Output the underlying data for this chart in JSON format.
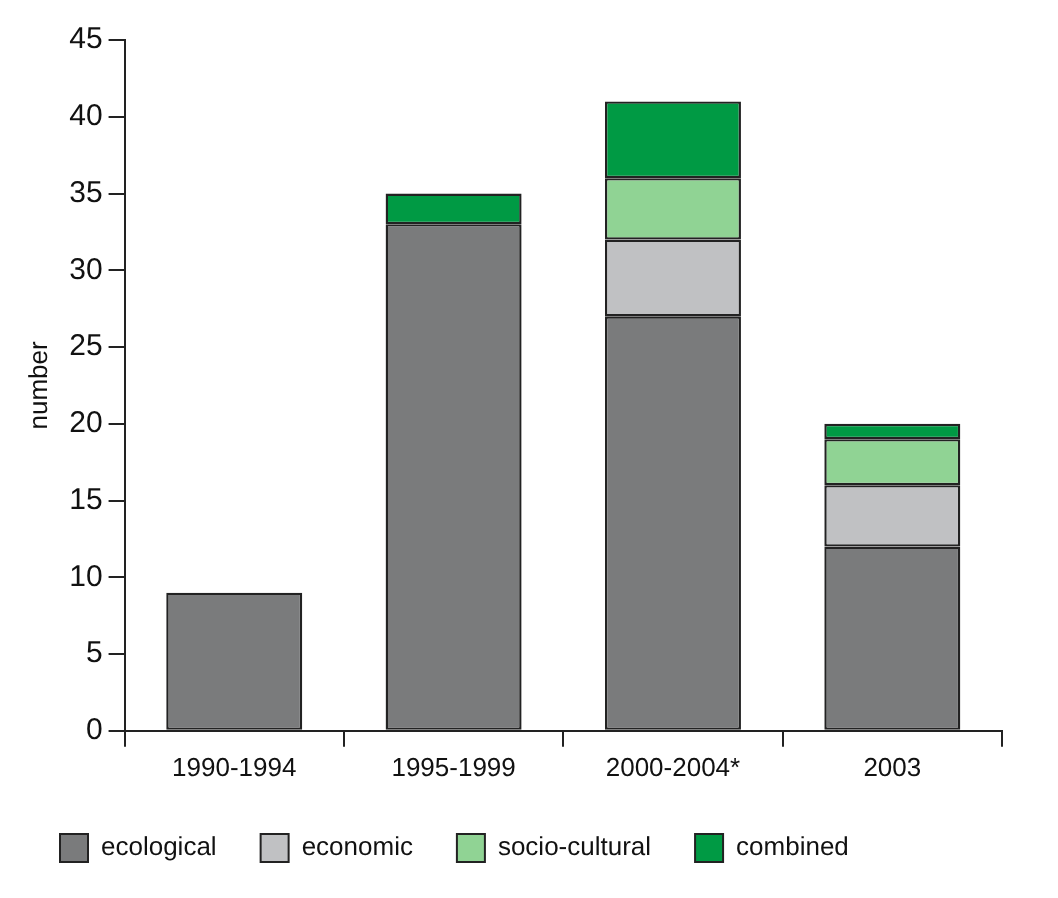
{
  "chart_data": {
    "type": "bar",
    "ylabel": "number",
    "categories": [
      "1990-1994",
      "1995-1999",
      "2000-2004*",
      "2003"
    ],
    "series": [
      {
        "name": "ecological",
        "color": "#7a7b7c",
        "values": [
          9,
          33,
          27,
          12
        ]
      },
      {
        "name": "economic",
        "color": "#c0c1c3",
        "values": [
          0,
          0,
          5,
          4
        ]
      },
      {
        "name": "socio-cultural",
        "color": "#90d394",
        "values": [
          0,
          0,
          4,
          3
        ]
      },
      {
        "name": "combined",
        "color": "#009a44",
        "values": [
          0,
          2,
          5,
          1
        ]
      }
    ],
    "stacked": true,
    "ylim": [
      0,
      45
    ],
    "yticks": [
      0,
      5,
      10,
      15,
      20,
      25,
      30,
      35,
      40,
      45
    ],
    "grid": false,
    "legend": "bottom"
  }
}
